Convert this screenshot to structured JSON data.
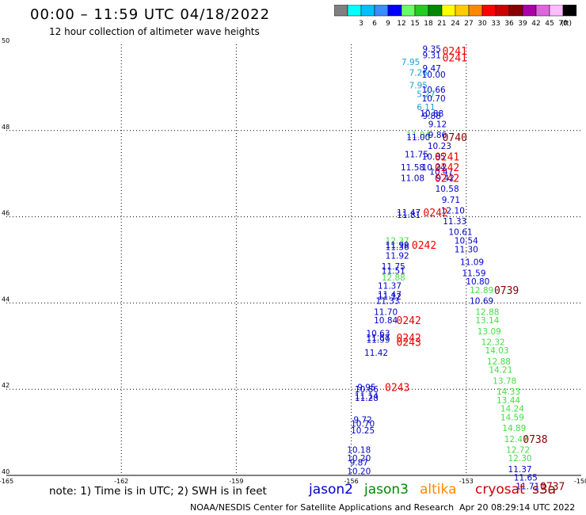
{
  "header": {
    "title": "00:00 – 11:59 UTC 04/18/2022",
    "subtitle": "12 hour collection of altimeter wave heights"
  },
  "scale": {
    "unit": "(ft)",
    "bins": [
      {
        "label": "",
        "color": "#808080"
      },
      {
        "label": "3",
        "color": "#00ffff"
      },
      {
        "label": "6",
        "color": "#00bfff"
      },
      {
        "label": "9",
        "color": "#3a8cff"
      },
      {
        "label": "12",
        "color": "#0000ff"
      },
      {
        "label": "15",
        "color": "#66ff66"
      },
      {
        "label": "18",
        "color": "#22cc22"
      },
      {
        "label": "21",
        "color": "#008800"
      },
      {
        "label": "24",
        "color": "#ffff00"
      },
      {
        "label": "27",
        "color": "#ffcc00"
      },
      {
        "label": "30",
        "color": "#ff8800"
      },
      {
        "label": "33",
        "color": "#ff0000"
      },
      {
        "label": "36",
        "color": "#cc0000"
      },
      {
        "label": "39",
        "color": "#880000"
      },
      {
        "label": "42",
        "color": "#aa00aa"
      },
      {
        "label": "45",
        "color": "#dd66dd"
      },
      {
        "label": "70",
        "color": "#ffbbff"
      },
      {
        "label": "",
        "color": "#000000"
      }
    ]
  },
  "footer": {
    "note": "note:  1) Time is in UTC;  2) SWH is in feet",
    "legend": [
      {
        "name": "jason2",
        "color": "#0000cc"
      },
      {
        "name": "jason3",
        "color": "#008800"
      },
      {
        "name": "altika",
        "color": "#ff8800"
      },
      {
        "name": "cryosat",
        "color": "#cc0000"
      },
      {
        "name": "s3a",
        "color": "#880000"
      }
    ],
    "credit": "NOAA/NESDIS Center for Satellite Applications and Research",
    "timestamp": "Apr 20 08:29:14 UTC 2022"
  },
  "colors": {
    "blue": "#0000cc",
    "cyan": "#1a9fd4",
    "green": "#44dd44",
    "red": "#ee0000",
    "maroon": "#880000",
    "grid": "#000000"
  },
  "chart_data": {
    "type": "scatter",
    "xlim": [
      -165,
      -150
    ],
    "ylim": [
      40,
      50
    ],
    "x_ticks": [
      "-165",
      "-162",
      "-159",
      "-156",
      "-153",
      "-150"
    ],
    "x_tick_values": [
      -165,
      -162,
      -159,
      -156,
      -153,
      -150
    ],
    "y_ticks": [
      "40",
      "42",
      "44",
      "46",
      "48",
      "50"
    ],
    "y_tick_values": [
      40,
      42,
      44,
      46,
      48,
      50
    ],
    "grid": true,
    "points": [
      {
        "x": -153.9,
        "y": 49.9,
        "label": "9.35",
        "color": "blue"
      },
      {
        "x": -153.9,
        "y": 49.75,
        "label": "9.31",
        "color": "blue"
      },
      {
        "x": -154.45,
        "y": 49.6,
        "label": "7.95",
        "color": "cyan"
      },
      {
        "x": -153.9,
        "y": 49.45,
        "label": "9.47",
        "color": "blue"
      },
      {
        "x": -154.25,
        "y": 49.35,
        "label": "7.26",
        "color": "cyan"
      },
      {
        "x": -153.85,
        "y": 49.3,
        "label": "10.00",
        "color": "blue"
      },
      {
        "x": -154.25,
        "y": 49.05,
        "label": "7.95",
        "color": "cyan"
      },
      {
        "x": -153.85,
        "y": 48.95,
        "label": "10.66",
        "color": "blue"
      },
      {
        "x": -154.05,
        "y": 48.85,
        "label": "5.27",
        "color": "cyan"
      },
      {
        "x": -153.85,
        "y": 48.75,
        "label": "10.70",
        "color": "blue"
      },
      {
        "x": -154.05,
        "y": 48.55,
        "label": "6.11",
        "color": "cyan"
      },
      {
        "x": -153.9,
        "y": 48.4,
        "label": "10.88",
        "color": "blue"
      },
      {
        "x": -153.9,
        "y": 48.35,
        "label": "9.88",
        "color": "blue"
      },
      {
        "x": -153.75,
        "y": 48.15,
        "label": "9.12",
        "color": "blue"
      },
      {
        "x": -154.25,
        "y": 47.9,
        "label": "11.04",
        "color": "green"
      },
      {
        "x": -153.75,
        "y": 47.9,
        "label": "9.86",
        "color": "blue"
      },
      {
        "x": -154.25,
        "y": 47.85,
        "label": "11.00",
        "color": "blue"
      },
      {
        "x": -153.7,
        "y": 47.65,
        "label": "10.23",
        "color": "blue"
      },
      {
        "x": -154.3,
        "y": 47.45,
        "label": "11.75",
        "color": "blue"
      },
      {
        "x": -153.85,
        "y": 47.4,
        "label": "10.85",
        "color": "blue"
      },
      {
        "x": -153.85,
        "y": 47.15,
        "label": "10.24",
        "color": "blue"
      },
      {
        "x": -154.4,
        "y": 47.15,
        "label": "11.58",
        "color": "blue"
      },
      {
        "x": -153.65,
        "y": 47.05,
        "label": "10.47",
        "color": "blue"
      },
      {
        "x": -154.4,
        "y": 46.9,
        "label": "11.08",
        "color": "blue"
      },
      {
        "x": -153.55,
        "y": 46.9,
        "label": "9.42",
        "color": "blue"
      },
      {
        "x": -153.5,
        "y": 46.65,
        "label": "10.58",
        "color": "blue"
      },
      {
        "x": -153.4,
        "y": 46.4,
        "label": "9.71",
        "color": "blue"
      },
      {
        "x": -154.5,
        "y": 46.1,
        "label": "11.47",
        "color": "blue"
      },
      {
        "x": -154.5,
        "y": 46.05,
        "label": "11.81",
        "color": "blue"
      },
      {
        "x": -153.35,
        "y": 46.15,
        "label": "12.10",
        "color": "blue"
      },
      {
        "x": -153.3,
        "y": 45.9,
        "label": "11.33",
        "color": "blue"
      },
      {
        "x": -153.15,
        "y": 45.65,
        "label": "10.61",
        "color": "blue"
      },
      {
        "x": -154.8,
        "y": 45.45,
        "label": "12.37",
        "color": "green"
      },
      {
        "x": -153.0,
        "y": 45.45,
        "label": "10.54",
        "color": "blue"
      },
      {
        "x": -154.8,
        "y": 45.35,
        "label": "11.99",
        "color": "blue"
      },
      {
        "x": -154.8,
        "y": 45.3,
        "label": "11.36",
        "color": "blue"
      },
      {
        "x": -153.0,
        "y": 45.25,
        "label": "11.30",
        "color": "blue"
      },
      {
        "x": -154.8,
        "y": 45.1,
        "label": "11.92",
        "color": "blue"
      },
      {
        "x": -152.85,
        "y": 44.95,
        "label": "11.09",
        "color": "blue"
      },
      {
        "x": -154.9,
        "y": 44.85,
        "label": "11.75",
        "color": "blue"
      },
      {
        "x": -154.9,
        "y": 44.75,
        "label": "11.51",
        "color": "blue"
      },
      {
        "x": -152.8,
        "y": 44.7,
        "label": "11.59",
        "color": "blue"
      },
      {
        "x": -154.9,
        "y": 44.6,
        "label": "12.88",
        "color": "green"
      },
      {
        "x": -152.7,
        "y": 44.5,
        "label": "10.80",
        "color": "blue"
      },
      {
        "x": -155.0,
        "y": 44.4,
        "label": "11.37",
        "color": "blue"
      },
      {
        "x": -152.6,
        "y": 44.3,
        "label": "12.89",
        "color": "green"
      },
      {
        "x": -155.0,
        "y": 44.2,
        "label": "11.47",
        "color": "blue"
      },
      {
        "x": -155.0,
        "y": 44.15,
        "label": "11.12",
        "color": "blue"
      },
      {
        "x": -155.05,
        "y": 44.05,
        "label": "11.33",
        "color": "blue"
      },
      {
        "x": -152.6,
        "y": 44.05,
        "label": "10.69",
        "color": "blue"
      },
      {
        "x": -155.1,
        "y": 43.8,
        "label": "11.70",
        "color": "blue"
      },
      {
        "x": -152.45,
        "y": 43.8,
        "label": "12.88",
        "color": "green"
      },
      {
        "x": -155.1,
        "y": 43.6,
        "label": "10.84",
        "color": "blue"
      },
      {
        "x": -152.45,
        "y": 43.6,
        "label": "13.14",
        "color": "green"
      },
      {
        "x": -155.3,
        "y": 43.3,
        "label": "10.63",
        "color": "blue"
      },
      {
        "x": -152.4,
        "y": 43.35,
        "label": "13.09",
        "color": "green"
      },
      {
        "x": -155.3,
        "y": 43.2,
        "label": "11.87",
        "color": "blue"
      },
      {
        "x": -155.3,
        "y": 43.15,
        "label": "11.99",
        "color": "blue"
      },
      {
        "x": -152.3,
        "y": 43.1,
        "label": "12.32",
        "color": "green"
      },
      {
        "x": -152.2,
        "y": 42.9,
        "label": "14.03",
        "color": "green"
      },
      {
        "x": -155.35,
        "y": 42.85,
        "label": "11.42",
        "color": "blue"
      },
      {
        "x": -152.15,
        "y": 42.65,
        "label": "12.88",
        "color": "green"
      },
      {
        "x": -152.1,
        "y": 42.45,
        "label": "14.21",
        "color": "green"
      },
      {
        "x": -152.0,
        "y": 42.2,
        "label": "13.78",
        "color": "green"
      },
      {
        "x": -155.6,
        "y": 42.05,
        "label": "9.95",
        "color": "blue"
      },
      {
        "x": -155.6,
        "y": 42.0,
        "label": "10.86",
        "color": "blue"
      },
      {
        "x": -151.9,
        "y": 41.95,
        "label": "14.33",
        "color": "green"
      },
      {
        "x": -155.6,
        "y": 41.85,
        "label": "11.14",
        "color": "blue"
      },
      {
        "x": -155.6,
        "y": 41.8,
        "label": "11.28",
        "color": "blue"
      },
      {
        "x": -151.9,
        "y": 41.75,
        "label": "13.44",
        "color": "green"
      },
      {
        "x": -151.8,
        "y": 41.55,
        "label": "14.24",
        "color": "green"
      },
      {
        "x": -151.8,
        "y": 41.35,
        "label": "14.59",
        "color": "green"
      },
      {
        "x": -155.7,
        "y": 41.3,
        "label": "9.72",
        "color": "blue"
      },
      {
        "x": -155.7,
        "y": 41.2,
        "label": "10.70",
        "color": "blue"
      },
      {
        "x": -151.75,
        "y": 41.1,
        "label": "14.89",
        "color": "green"
      },
      {
        "x": -155.7,
        "y": 41.05,
        "label": "10.25",
        "color": "blue"
      },
      {
        "x": -151.7,
        "y": 40.85,
        "label": "12.47",
        "color": "green"
      },
      {
        "x": -151.65,
        "y": 40.6,
        "label": "12.72",
        "color": "green"
      },
      {
        "x": -155.8,
        "y": 40.6,
        "label": "10.18",
        "color": "blue"
      },
      {
        "x": -155.8,
        "y": 40.4,
        "label": "10.20",
        "color": "blue"
      },
      {
        "x": -151.6,
        "y": 40.4,
        "label": "12.30",
        "color": "green"
      },
      {
        "x": -155.8,
        "y": 40.3,
        "label": "9.87",
        "color": "blue"
      },
      {
        "x": -151.6,
        "y": 40.15,
        "label": "11.37",
        "color": "blue"
      },
      {
        "x": -155.8,
        "y": 40.1,
        "label": "10.20",
        "color": "blue"
      },
      {
        "x": -151.45,
        "y": 39.95,
        "label": "11.65",
        "color": "blue"
      },
      {
        "x": -151.4,
        "y": 39.75,
        "label": "11.71",
        "color": "blue"
      }
    ],
    "annotations": [
      {
        "x": -153.3,
        "y": 49.85,
        "text": "0241",
        "color": "red"
      },
      {
        "x": -153.3,
        "y": 49.7,
        "text": "0241",
        "color": "red"
      },
      {
        "x": -153.3,
        "y": 47.85,
        "text": "0740",
        "color": "maroon"
      },
      {
        "x": -153.5,
        "y": 47.4,
        "text": "0241",
        "color": "red"
      },
      {
        "x": -153.5,
        "y": 47.15,
        "text": "0242",
        "color": "red"
      },
      {
        "x": -153.5,
        "y": 46.9,
        "text": "0242",
        "color": "red"
      },
      {
        "x": -153.8,
        "y": 46.1,
        "text": "0242",
        "color": "red"
      },
      {
        "x": -154.1,
        "y": 45.35,
        "text": "0242",
        "color": "red"
      },
      {
        "x": -151.95,
        "y": 44.3,
        "text": "0739",
        "color": "maroon"
      },
      {
        "x": -154.5,
        "y": 43.6,
        "text": "0242",
        "color": "red"
      },
      {
        "x": -154.5,
        "y": 43.2,
        "text": "0242",
        "color": "red"
      },
      {
        "x": -154.5,
        "y": 43.1,
        "text": "0243",
        "color": "red"
      },
      {
        "x": -154.8,
        "y": 42.05,
        "text": "0243",
        "color": "red"
      },
      {
        "x": -151.2,
        "y": 40.85,
        "text": "0738",
        "color": "maroon"
      },
      {
        "x": -150.75,
        "y": 39.75,
        "text": "0737",
        "color": "maroon"
      }
    ]
  }
}
